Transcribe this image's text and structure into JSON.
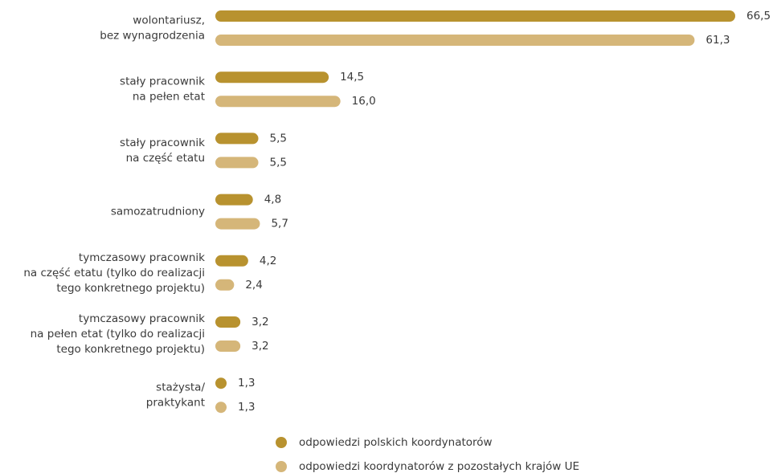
{
  "chart_data": {
    "type": "bar",
    "orientation": "horizontal",
    "categories": [
      [
        "wolontariusz,",
        "bez wynagrodzenia"
      ],
      [
        "stały pracownik",
        "na pełen etat"
      ],
      [
        "stały pracownik",
        "na część etatu"
      ],
      [
        "samozatrudniony"
      ],
      [
        "tymczasowy pracownik",
        "na część etatu (tylko do realizacji",
        "tego konkretnego projektu)"
      ],
      [
        "tymczasowy pracownik",
        "na pełen etat (tylko do realizacji",
        "tego konkretnego projektu)"
      ],
      [
        "stażysta/",
        "praktykant"
      ]
    ],
    "series": [
      {
        "name": "odpowiedzi polskich koordynatorów",
        "color": "#b8922f",
        "values": [
          66.5,
          14.5,
          5.5,
          4.8,
          4.2,
          3.2,
          1.3
        ],
        "value_labels": [
          "66,5",
          "14,5",
          "5,5",
          "4,8",
          "4,2",
          "3,2",
          "1,3"
        ]
      },
      {
        "name": "odpowiedzi koordynatorów z pozostałych krajów UE",
        "color": "#d5b679",
        "values": [
          61.3,
          16.0,
          5.5,
          5.7,
          2.4,
          3.2,
          1.3
        ],
        "value_labels": [
          "61,3",
          "16,0",
          "5,5",
          "5,7",
          "2,4",
          "3,2",
          "1,3"
        ]
      }
    ]
  }
}
